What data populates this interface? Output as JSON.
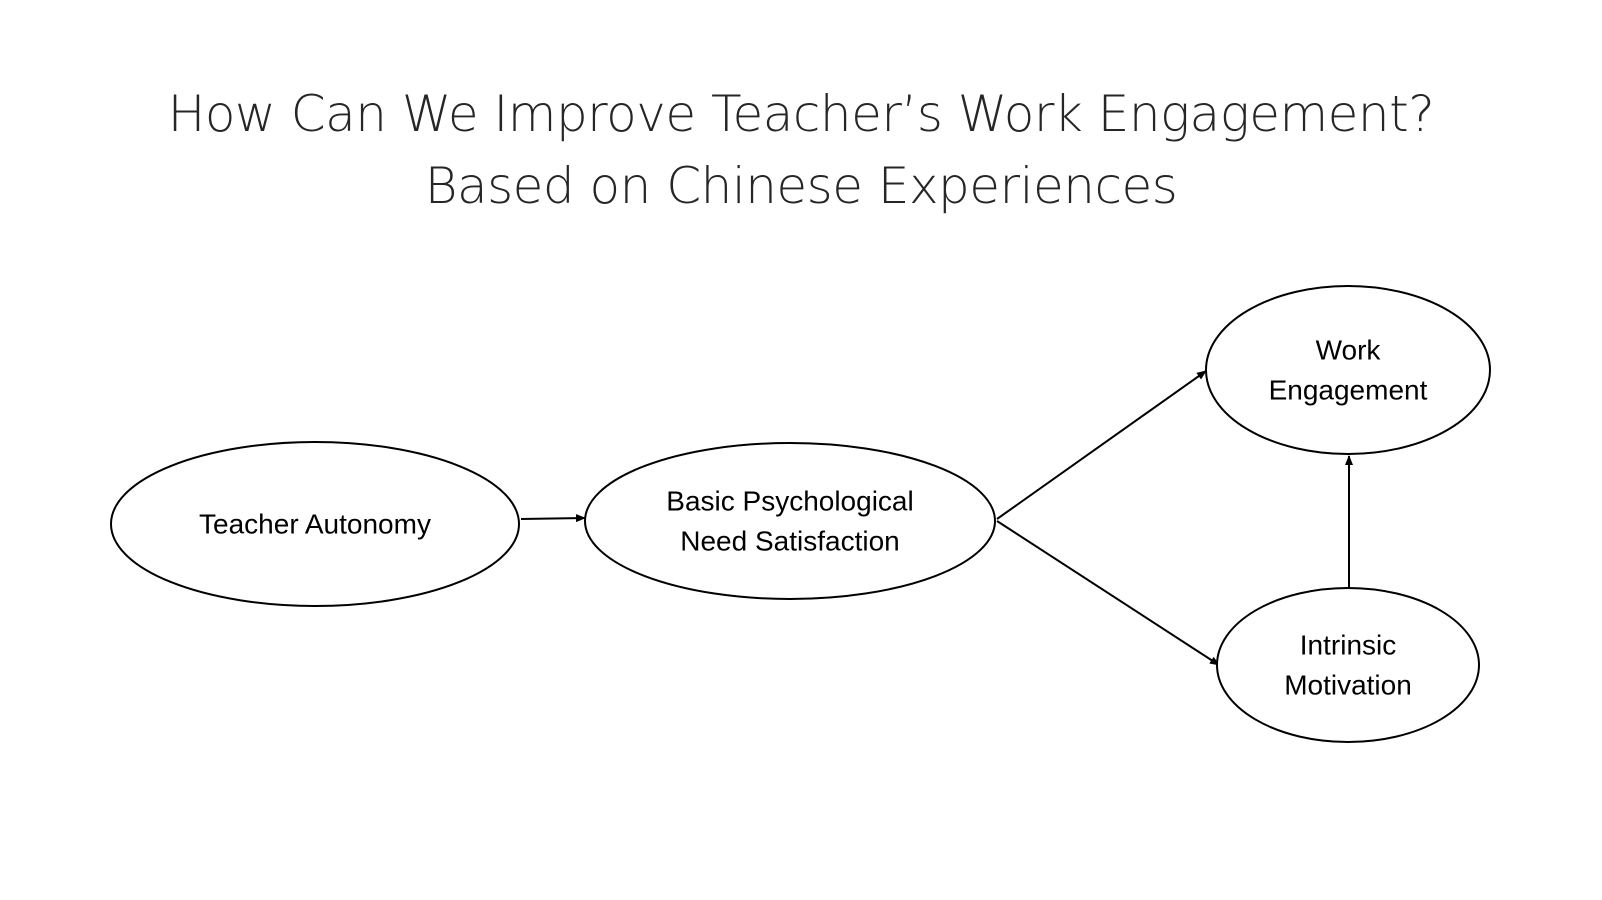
{
  "slide": {
    "title_line_1": "How Can We Improve Teacher’s Work Engagement?",
    "title_line_2": "Based on Chinese Experiences"
  },
  "diagram": {
    "nodes": [
      {
        "id": "teacher-autonomy",
        "lines": [
          "Teacher Autonomy"
        ]
      },
      {
        "id": "basic-psychological-need-satisfaction",
        "lines": [
          "Basic Psychological",
          "Need Satisfaction"
        ]
      },
      {
        "id": "work-engagement",
        "lines": [
          "Work",
          "Engagement"
        ]
      },
      {
        "id": "intrinsic-motivation",
        "lines": [
          "Intrinsic",
          "Motivation"
        ]
      }
    ],
    "edges": [
      {
        "from": "teacher-autonomy",
        "to": "basic-psychological-need-satisfaction"
      },
      {
        "from": "basic-psychological-need-satisfaction",
        "to": "work-engagement"
      },
      {
        "from": "basic-psychological-need-satisfaction",
        "to": "intrinsic-motivation"
      },
      {
        "from": "intrinsic-motivation",
        "to": "work-engagement"
      }
    ]
  }
}
